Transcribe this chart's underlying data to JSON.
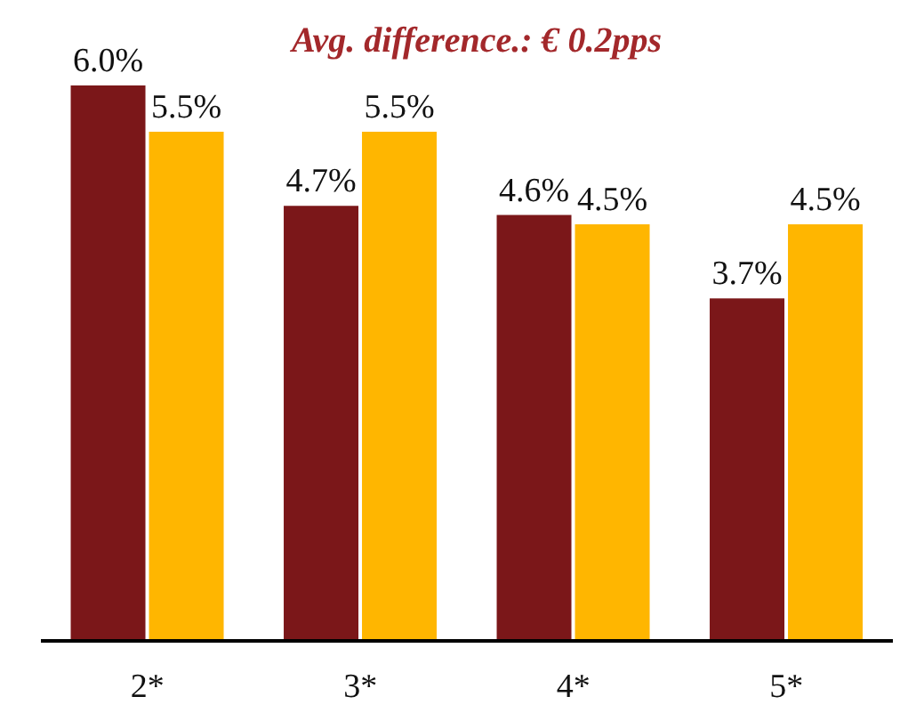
{
  "chart_data": {
    "type": "bar",
    "title": "Avg. difference.: € 0.2pps",
    "categories": [
      "2*",
      "3*",
      "4*",
      "5*"
    ],
    "series": [
      {
        "color": "#7b1719",
        "values": [
          6.0,
          4.7,
          4.6,
          3.7
        ],
        "value_labels": [
          "6.0%",
          "4.7%",
          "4.6%",
          "3.7%"
        ]
      },
      {
        "color": "#ffb600",
        "values": [
          5.5,
          5.5,
          4.5,
          4.5
        ],
        "value_labels": [
          "5.5%",
          "5.5%",
          "4.5%",
          "4.5%"
        ]
      }
    ],
    "grid": false,
    "legend": false
  }
}
